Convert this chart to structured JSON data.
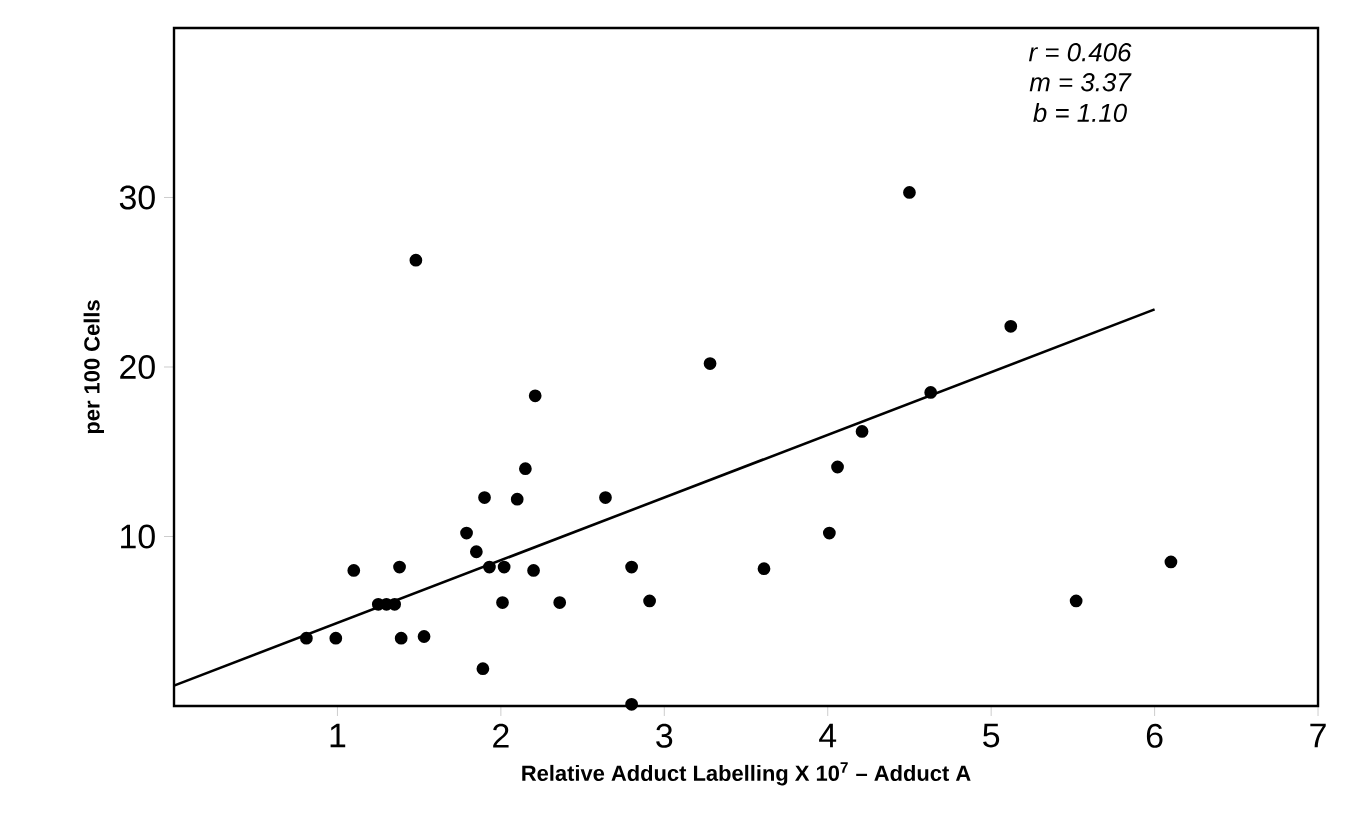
{
  "chart_data": {
    "type": "scatter",
    "xlabel": "Relative Adduct Labelling X 10$^{7}$ – Adduct A",
    "ylabel": "per 100 Cells",
    "annotations": [
      "r = 0.406",
      "m = 3.37",
      "b = 1.10"
    ],
    "xlim": [
      0,
      7
    ],
    "ylim": [
      0,
      40
    ],
    "xticks": [
      1,
      2,
      3,
      4,
      5,
      6,
      7
    ],
    "yticks": [
      10,
      20,
      30
    ],
    "grid": false,
    "series": [
      {
        "color": "#000000",
        "marker": "circle",
        "x": [
          0.81,
          0.99,
          1.1,
          1.25,
          1.3,
          1.35,
          1.38,
          1.39,
          1.53,
          1.48,
          1.79,
          1.85,
          1.9,
          1.89,
          1.93,
          2.02,
          2.01,
          2.1,
          2.15,
          2.2,
          2.21,
          2.36,
          2.64,
          2.8,
          2.91,
          2.8,
          3.28,
          3.61,
          4.01,
          4.06,
          4.21,
          4.5,
          4.63,
          5.12,
          5.52,
          6.1
        ],
        "values": [
          4.0,
          4.0,
          8.0,
          6.0,
          6.0,
          6.0,
          8.2,
          4.0,
          4.1,
          26.3,
          10.2,
          9.1,
          12.3,
          2.2,
          8.2,
          8.2,
          6.1,
          12.2,
          14.0,
          8.0,
          18.3,
          6.1,
          12.3,
          8.2,
          6.2,
          0.1,
          20.2,
          8.1,
          10.2,
          14.1,
          16.2,
          30.3,
          18.5,
          22.4,
          6.2,
          8.5
        ]
      },
      {
        "type": "line",
        "color": "#000000",
        "marker": "none",
        "line_style": "solid",
        "x": [
          0,
          6
        ],
        "values": [
          1.2,
          23.4
        ]
      }
    ]
  }
}
